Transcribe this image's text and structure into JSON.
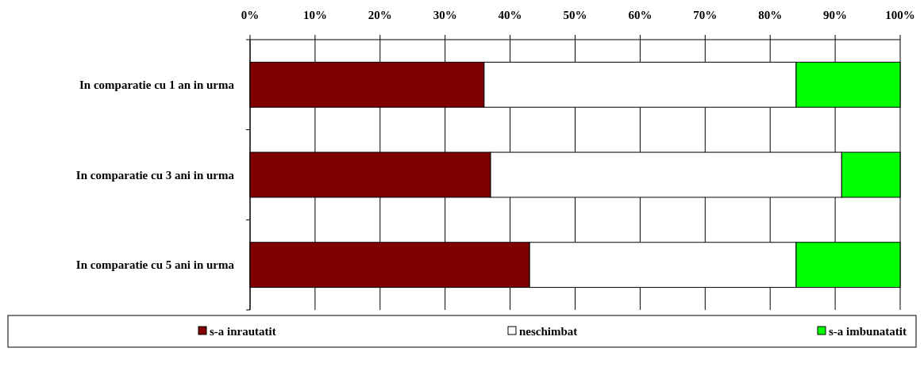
{
  "chart_data": {
    "type": "bar",
    "orientation": "horizontal",
    "stacked": true,
    "categories": [
      "In comparatie cu 1 an in urma",
      "In comparatie cu 3 ani in urma",
      "In comparatie cu 5 ani in urma"
    ],
    "series": [
      {
        "name": "s-a inrautatit",
        "color": "#800000",
        "values": [
          36,
          37,
          43
        ]
      },
      {
        "name": "neschimbat",
        "color": "#ffffff",
        "values": [
          48,
          54,
          41
        ]
      },
      {
        "name": "s-a imbunatatit",
        "color": "#00ff00",
        "values": [
          16,
          9,
          16
        ]
      }
    ],
    "xlim": [
      0,
      100
    ],
    "xticks": [
      {
        "value": 0,
        "label": "0%"
      },
      {
        "value": 10,
        "label": "10%"
      },
      {
        "value": 20,
        "label": "20%"
      },
      {
        "value": 30,
        "label": "30%"
      },
      {
        "value": 40,
        "label": "40%"
      },
      {
        "value": 50,
        "label": "50%"
      },
      {
        "value": 60,
        "label": "60%"
      },
      {
        "value": 70,
        "label": "70%"
      },
      {
        "value": 80,
        "label": "80%"
      },
      {
        "value": 90,
        "label": "90%"
      },
      {
        "value": 100,
        "label": "100%"
      }
    ],
    "grid": "x",
    "legend": "bottom"
  }
}
